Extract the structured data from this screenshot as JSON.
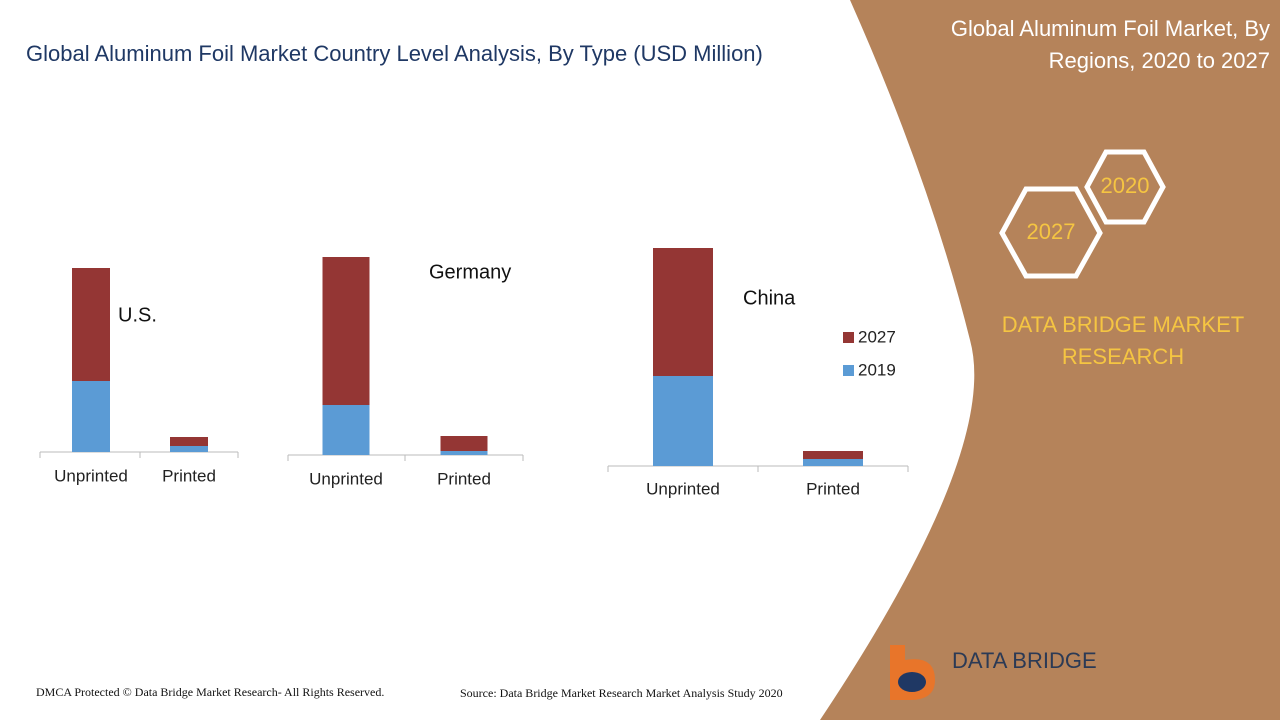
{
  "header": {
    "title": "Global Aluminum Foil  Market Country Level Analysis, By Type (USD Million)"
  },
  "side_panel": {
    "title_line1": "Global  Aluminum Foil Market, By",
    "title_line2": "Regions, 2020 to 2027",
    "badge_a": "2020",
    "badge_b": "2027",
    "brand_line1": "DATA BRIDGE MARKET",
    "brand_line2": "RESEARCH",
    "logo_text": "DATA BRIDGE"
  },
  "footer": {
    "copyright": "DMCA Protected © Data Bridge Market Research- All Rights Reserved.",
    "source": "Source: Data Bridge Market Research Market Analysis Study 2020"
  },
  "chart_data": [
    {
      "type": "bar",
      "stacked": true,
      "title": "U.S.",
      "categories": [
        "Unprinted",
        "Printed"
      ],
      "series": [
        {
          "color": "#5b9bd5",
          "values": [
            71,
            6
          ]
        },
        {
          "color": "#943634",
          "values": [
            113,
            9
          ]
        }
      ]
    },
    {
      "type": "bar",
      "stacked": true,
      "title": "Germany",
      "categories": [
        "Unprinted",
        "Printed"
      ],
      "series": [
        {
          "color": "#5b9bd5",
          "values": [
            50,
            4
          ]
        },
        {
          "color": "#943634",
          "values": [
            148,
            15
          ]
        }
      ]
    },
    {
      "type": "bar",
      "stacked": true,
      "title": "China",
      "categories": [
        "Unprinted",
        "Printed"
      ],
      "legend": "right",
      "series": [
        {
          "name": "2019",
          "color": "#5b9bd5",
          "values": [
            90,
            7
          ]
        },
        {
          "name": "2027",
          "color": "#943634",
          "values": [
            128,
            8
          ]
        }
      ]
    }
  ]
}
